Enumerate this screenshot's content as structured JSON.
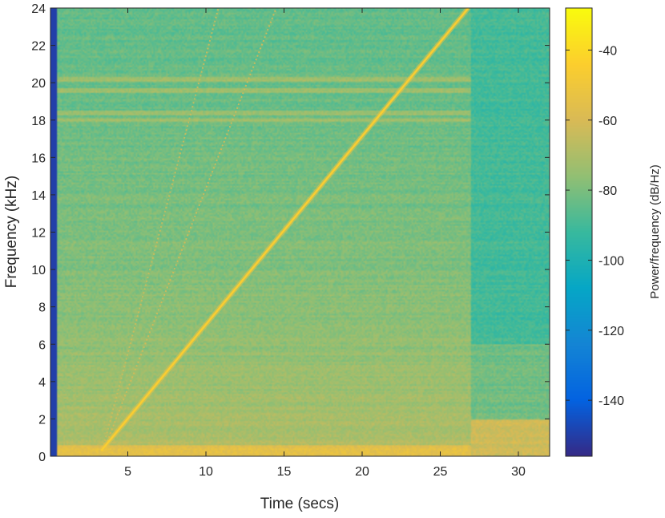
{
  "chart_data": {
    "type": "heatmap",
    "subtype": "spectrogram",
    "xlabel": "Time (secs)",
    "ylabel": "Frequency (kHz)",
    "colorbar_label": "Power/frequency (dB/Hz)",
    "xlim": [
      0.05,
      32
    ],
    "ylim": [
      0,
      24
    ],
    "x_ticks": [
      5,
      10,
      15,
      20,
      25,
      30
    ],
    "y_ticks": [
      0,
      2,
      4,
      6,
      8,
      10,
      12,
      14,
      16,
      18,
      20,
      22,
      24
    ],
    "clim": [
      -156,
      -28
    ],
    "colorbar_ticks": [
      -40,
      -60,
      -80,
      -100,
      -120,
      -140
    ],
    "colormap": "parula",
    "colormap_stops": [
      "#352a87",
      "#0363e1",
      "#1485d4",
      "#06a7c6",
      "#38b99e",
      "#92bf73",
      "#d9ba56",
      "#fcce2e",
      "#f9fb0e"
    ],
    "features": {
      "main_chirp": {
        "x": [
          3.3,
          26.8
        ],
        "y": [
          0.3,
          24
        ],
        "level_db": -45
      },
      "harmonic_chirps": [
        {
          "x": [
            3.4,
            10.8
          ],
          "y": [
            0.4,
            24
          ],
          "level_db": -62
        },
        {
          "x": [
            3.5,
            14.5
          ],
          "y": [
            0.4,
            24
          ],
          "level_db": -60
        }
      ],
      "horizontal_bands_khz": [
        18.0,
        18.4,
        19.6,
        20.2
      ],
      "low_frequency_band_khz": [
        0,
        0.6
      ],
      "signal_end_time": 27.0,
      "background_level_db": {
        "low_freq": -65,
        "high_freq": -85,
        "after_end": -90
      }
    },
    "grid": false,
    "legend": "none"
  }
}
